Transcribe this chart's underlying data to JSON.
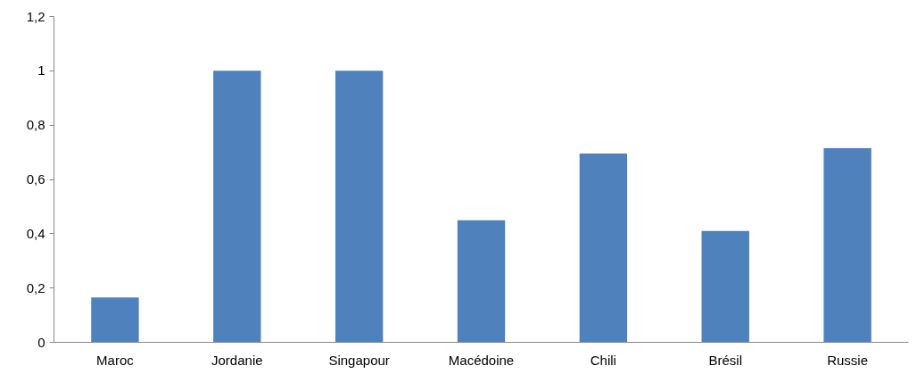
{
  "chart_data": {
    "type": "bar",
    "categories": [
      "Maroc",
      "Jordanie",
      "Singapour",
      "Macédoine",
      "Chili",
      "Brésil",
      "Russie"
    ],
    "values": [
      0.165,
      1,
      1,
      0.45,
      0.695,
      0.41,
      0.715
    ],
    "color": "#4f81bd",
    "ylim": [
      0,
      1.2
    ],
    "yticks": [
      0,
      {
        "value": 0.2,
        "label": "0,2"
      },
      {
        "value": 0.4,
        "label": "0,4"
      },
      {
        "value": 0.6,
        "label": "0,6"
      },
      {
        "value": 0.8,
        "label": "0,8"
      },
      1,
      {
        "value": 1.2,
        "label": "1,2"
      }
    ],
    "grid": false
  }
}
